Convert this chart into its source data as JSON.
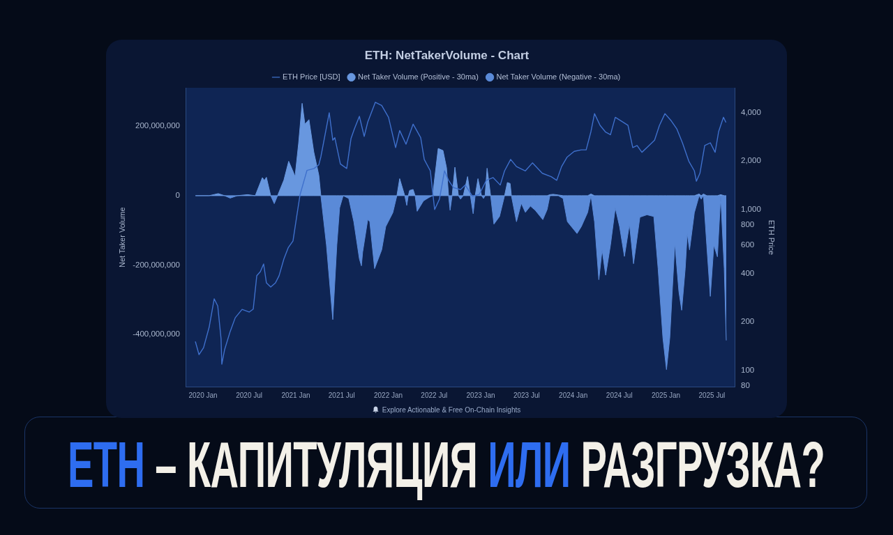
{
  "chart_data": {
    "type": "area",
    "title": "ETH: NetTakerVolume - Chart",
    "ylabel": "Net Taker Volume",
    "y2label": "ETH Price",
    "legend": "top",
    "marker": "none",
    "log": "y2",
    "annotations": [
      "Explore Actionable & Free On-Chain Insights",
      "ETH – КАПИТУЛЯЦИЯ ИЛИ РАЗГРУЗКА?"
    ],
    "x": [
      "2019-12-02",
      "2020-01-25",
      "2020-03-01",
      "2020-03-26",
      "2020-04-17",
      "2020-05-15",
      "2020-06-25",
      "2020-07-25",
      "2020-08-22",
      "2020-08-30",
      "2020-09-07",
      "2020-09-24",
      "2020-10-08",
      "2020-10-21",
      "2020-11-15",
      "2020-12-04",
      "2020-12-21",
      "2020-12-29",
      "2021-01-12",
      "2021-01-26",
      "2021-02-06",
      "2021-02-22",
      "2021-03-13",
      "2021-04-02",
      "2021-04-10",
      "2021-05-02",
      "2021-05-27",
      "2021-06-12",
      "2021-06-23",
      "2021-07-07",
      "2021-07-29",
      "2021-08-18",
      "2021-09-09",
      "2021-09-17",
      "2021-09-22",
      "2021-10-12",
      "2021-10-20",
      "2021-11-08",
      "2021-12-06",
      "2021-12-22",
      "2022-01-19",
      "2022-02-04",
      "2022-02-15",
      "2022-03-07",
      "2022-03-15",
      "2022-03-21",
      "2022-03-26",
      "2022-04-09",
      "2022-04-17",
      "2022-04-25",
      "2022-05-20",
      "2022-06-11",
      "2022-06-25",
      "2022-07-17",
      "2022-08-05",
      "2022-08-19",
      "2022-08-27",
      "2022-09-02",
      "2022-09-10",
      "2022-09-21",
      "2022-10-05",
      "2022-10-13",
      "2022-10-24",
      "2022-11-10",
      "2022-11-21",
      "2022-12-02",
      "2022-12-10",
      "2022-12-21",
      "2023-01-04",
      "2023-01-12",
      "2023-01-18",
      "2023-01-26",
      "2023-02-09",
      "2023-02-22",
      "2023-03-16",
      "2023-04-05",
      "2023-04-16",
      "2023-04-27",
      "2023-05-02",
      "2023-05-22",
      "2023-06-10",
      "2023-06-26",
      "2023-07-16",
      "2023-08-04",
      "2023-09-03",
      "2023-09-20",
      "2023-10-01",
      "2023-10-14",
      "2023-11-03",
      "2023-11-22",
      "2023-12-09",
      "2024-01-16",
      "2024-02-02",
      "2024-02-27",
      "2024-03-11",
      "2024-03-25",
      "2024-04-11",
      "2024-04-24",
      "2024-05-08",
      "2024-05-27",
      "2024-06-15",
      "2024-07-02",
      "2024-07-21",
      "2024-08-10",
      "2024-08-26",
      "2024-09-20",
      "2024-10-18",
      "2024-11-14",
      "2024-12-01",
      "2024-12-20",
      "2025-01-03",
      "2025-01-16",
      "2025-02-05",
      "2025-02-21",
      "2025-03-04",
      "2025-03-18",
      "2025-03-26",
      "2025-04-04",
      "2025-04-23",
      "2025-05-12",
      "2025-05-20",
      "2025-05-29",
      "2025-06-11",
      "2025-06-25",
      "2025-07-09",
      "2025-07-23",
      "2025-08-05",
      "2025-08-19",
      "2025-08-27"
    ],
    "series": [
      {
        "name": "ETH Price [USD]",
        "type": "line",
        "axis": "y2",
        "color": "#3f70cc",
        "x": [
          "2019-12-02",
          "2019-12-16",
          "2020-01-03",
          "2020-01-25",
          "2020-02-14",
          "2020-02-28",
          "2020-03-12",
          "2020-03-15",
          "2020-03-26",
          "2020-04-17",
          "2020-05-07",
          "2020-06-03",
          "2020-07-01",
          "2020-07-17",
          "2020-07-31",
          "2020-08-14",
          "2020-08-27",
          "2020-09-07",
          "2020-09-24",
          "2020-10-13",
          "2020-10-27",
          "2020-11-15",
          "2020-12-02",
          "2020-12-21",
          "2021-01-04",
          "2021-01-18",
          "2021-02-14",
          "2021-03-14",
          "2021-04-02",
          "2021-04-10",
          "2021-05-13",
          "2021-05-27",
          "2021-06-04",
          "2021-06-26",
          "2021-07-21",
          "2021-08-07",
          "2021-08-20",
          "2021-09-09",
          "2021-09-28",
          "2021-10-12",
          "2021-11-11",
          "2021-12-06",
          "2022-01-02",
          "2022-01-30",
          "2022-02-15",
          "2022-03-12",
          "2022-04-09",
          "2022-05-09",
          "2022-05-23",
          "2022-06-16",
          "2022-06-25",
          "2022-07-03",
          "2022-07-22",
          "2022-08-11",
          "2022-08-27",
          "2022-09-15",
          "2022-10-13",
          "2022-11-01",
          "2022-11-29",
          "2022-12-26",
          "2023-01-23",
          "2023-02-19",
          "2023-03-19",
          "2023-04-05",
          "2023-04-29",
          "2023-05-22",
          "2023-06-26",
          "2023-07-24",
          "2023-09-01",
          "2023-10-06",
          "2023-10-28",
          "2023-11-16",
          "2023-12-08",
          "2024-01-05",
          "2024-02-02",
          "2024-02-21",
          "2024-03-11",
          "2024-03-25",
          "2024-04-16",
          "2024-05-08",
          "2024-05-27",
          "2024-06-15",
          "2024-07-08",
          "2024-08-04",
          "2024-08-23",
          "2024-09-09",
          "2024-09-28",
          "2024-10-26",
          "2024-11-17",
          "2024-12-06",
          "2024-12-28",
          "2025-01-22",
          "2025-02-13",
          "2025-03-07",
          "2025-04-01",
          "2025-04-23",
          "2025-05-01",
          "2025-05-15",
          "2025-06-03",
          "2025-06-25",
          "2025-07-14",
          "2025-07-28",
          "2025-08-16",
          "2025-08-25"
        ],
        "values": [
          150,
          125,
          138,
          185,
          278,
          251,
          157,
          109,
          134,
          174,
          212,
          239,
          230,
          240,
          387,
          410,
          458,
          350,
          329,
          350,
          387,
          492,
          578,
          637,
          893,
          1240,
          1750,
          1800,
          1900,
          2130,
          4000,
          2700,
          2800,
          1920,
          1800,
          2770,
          3170,
          3800,
          2850,
          3500,
          4650,
          4440,
          3750,
          2430,
          3100,
          2550,
          3400,
          2800,
          2050,
          1740,
          1290,
          1000,
          1160,
          1740,
          1520,
          1370,
          1330,
          1420,
          1210,
          1240,
          1520,
          1580,
          1420,
          1740,
          2050,
          1850,
          1740,
          1950,
          1680,
          1600,
          1520,
          1850,
          2120,
          2300,
          2350,
          2350,
          3060,
          3950,
          3340,
          3030,
          2920,
          3750,
          3560,
          3340,
          2430,
          2500,
          2270,
          2500,
          2700,
          3330,
          3950,
          3560,
          3170,
          2600,
          2000,
          1740,
          1500,
          1680,
          2500,
          2600,
          2270,
          3060,
          3750,
          3500
        ]
      },
      {
        "name": "Net Taker Volume (Positive - 30ma)",
        "color": "#6897df",
        "values": [
          0,
          0,
          6000000,
          0,
          0,
          0,
          3000000,
          0,
          52000000,
          44000000,
          53000000,
          0,
          0,
          0,
          45000000,
          99000000,
          70000000,
          55000000,
          150000000,
          266000000,
          206000000,
          219000000,
          126000000,
          59000000,
          0,
          0,
          0,
          0,
          0,
          0,
          0,
          0,
          0,
          0,
          0,
          0,
          0,
          0,
          0,
          0,
          0,
          0,
          49000000,
          0,
          0,
          0,
          15000000,
          18000000,
          0,
          0,
          0,
          0,
          0,
          136000000,
          130000000,
          80000000,
          0,
          0,
          0,
          82000000,
          0,
          0,
          0,
          55000000,
          0,
          0,
          0,
          49000000,
          0,
          0,
          0,
          79000000,
          0,
          0,
          0,
          0,
          38000000,
          35000000,
          0,
          0,
          0,
          0,
          0,
          0,
          0,
          0,
          3000000,
          4000000,
          2000000,
          0,
          0,
          0,
          0,
          0,
          5000000,
          0,
          0,
          0,
          0,
          0,
          0,
          0,
          0,
          0,
          0,
          0,
          0,
          0,
          0,
          0,
          0,
          0,
          0,
          0,
          0,
          0,
          0,
          0,
          0,
          5000000,
          0,
          5000000,
          0,
          0,
          0,
          0,
          3000000,
          0,
          0
        ]
      },
      {
        "name": "Net Taker Volume (Negative - 30ma)",
        "color": "#5a8ad8",
        "values": [
          0,
          0,
          0,
          0,
          -7000000,
          0,
          0,
          0,
          0,
          0,
          0,
          0,
          -23000000,
          0,
          0,
          0,
          0,
          0,
          0,
          0,
          0,
          0,
          0,
          0,
          0,
          -142000000,
          -357000000,
          -142000000,
          -35000000,
          0,
          -8000000,
          -75000000,
          -182000000,
          -202000000,
          -162000000,
          -69000000,
          -75000000,
          -210000000,
          -156000000,
          -89000000,
          -49000000,
          0,
          0,
          0,
          -28000000,
          0,
          0,
          0,
          0,
          -45000000,
          -15000000,
          -5000000,
          0,
          0,
          0,
          0,
          0,
          -42000000,
          0,
          0,
          0,
          -10000000,
          0,
          0,
          0,
          -52000000,
          0,
          0,
          0,
          -8000000,
          0,
          0,
          0,
          -82000000,
          -60000000,
          0,
          0,
          0,
          0,
          -75000000,
          -22000000,
          -48000000,
          -30000000,
          -42000000,
          -69000000,
          -40000000,
          0,
          0,
          0,
          -8000000,
          -75000000,
          -109000000,
          -89000000,
          -48000000,
          0,
          -75000000,
          -242000000,
          -156000000,
          -229000000,
          -142000000,
          -35000000,
          -89000000,
          -175000000,
          -82000000,
          -196000000,
          -62000000,
          -55000000,
          -60000000,
          -210000000,
          -410000000,
          -501000000,
          -410000000,
          -136000000,
          -276000000,
          -330000000,
          -210000000,
          -109000000,
          -156000000,
          -49000000,
          0,
          -10000000,
          0,
          -142000000,
          -290000000,
          -142000000,
          -176000000,
          0,
          -210000000,
          -417000000
        ]
      }
    ],
    "xlim": [
      "2019-10-24",
      "2025-09-29"
    ],
    "xticks": [
      {
        "value": "2020-01",
        "label": "2020 Jan"
      },
      {
        "value": "2020-07",
        "label": "2020 Jul"
      },
      {
        "value": "2021-01",
        "label": "2021 Jan"
      },
      {
        "value": "2021-07",
        "label": "2021 Jul"
      },
      {
        "value": "2022-01",
        "label": "2022 Jan"
      },
      {
        "value": "2022-07",
        "label": "2022 Jul"
      },
      {
        "value": "2023-01",
        "label": "2023 Jan"
      },
      {
        "value": "2023-07",
        "label": "2023 Jul"
      },
      {
        "value": "2024-01",
        "label": "2024 Jan"
      },
      {
        "value": "2024-07",
        "label": "2024 Jul"
      },
      {
        "value": "2025-01",
        "label": "2025 Jan"
      },
      {
        "value": "2025-07",
        "label": "2025 Jul"
      }
    ],
    "ylim": [
      -550000000,
      310000000
    ],
    "yticks": [
      {
        "value": -400000000,
        "label": "-400,000,000"
      },
      {
        "value": -200000000,
        "label": "-200,000,000"
      },
      0,
      {
        "value": 200000000,
        "label": "200,000,000"
      }
    ],
    "y2lim": [
      79,
      5700
    ],
    "y2ticks": [
      80,
      100,
      200,
      400,
      600,
      800,
      {
        "value": 1000,
        "label": "1,000"
      },
      {
        "value": 2000,
        "label": "2,000"
      },
      {
        "value": 4000,
        "label": "4,000"
      }
    ]
  }
}
